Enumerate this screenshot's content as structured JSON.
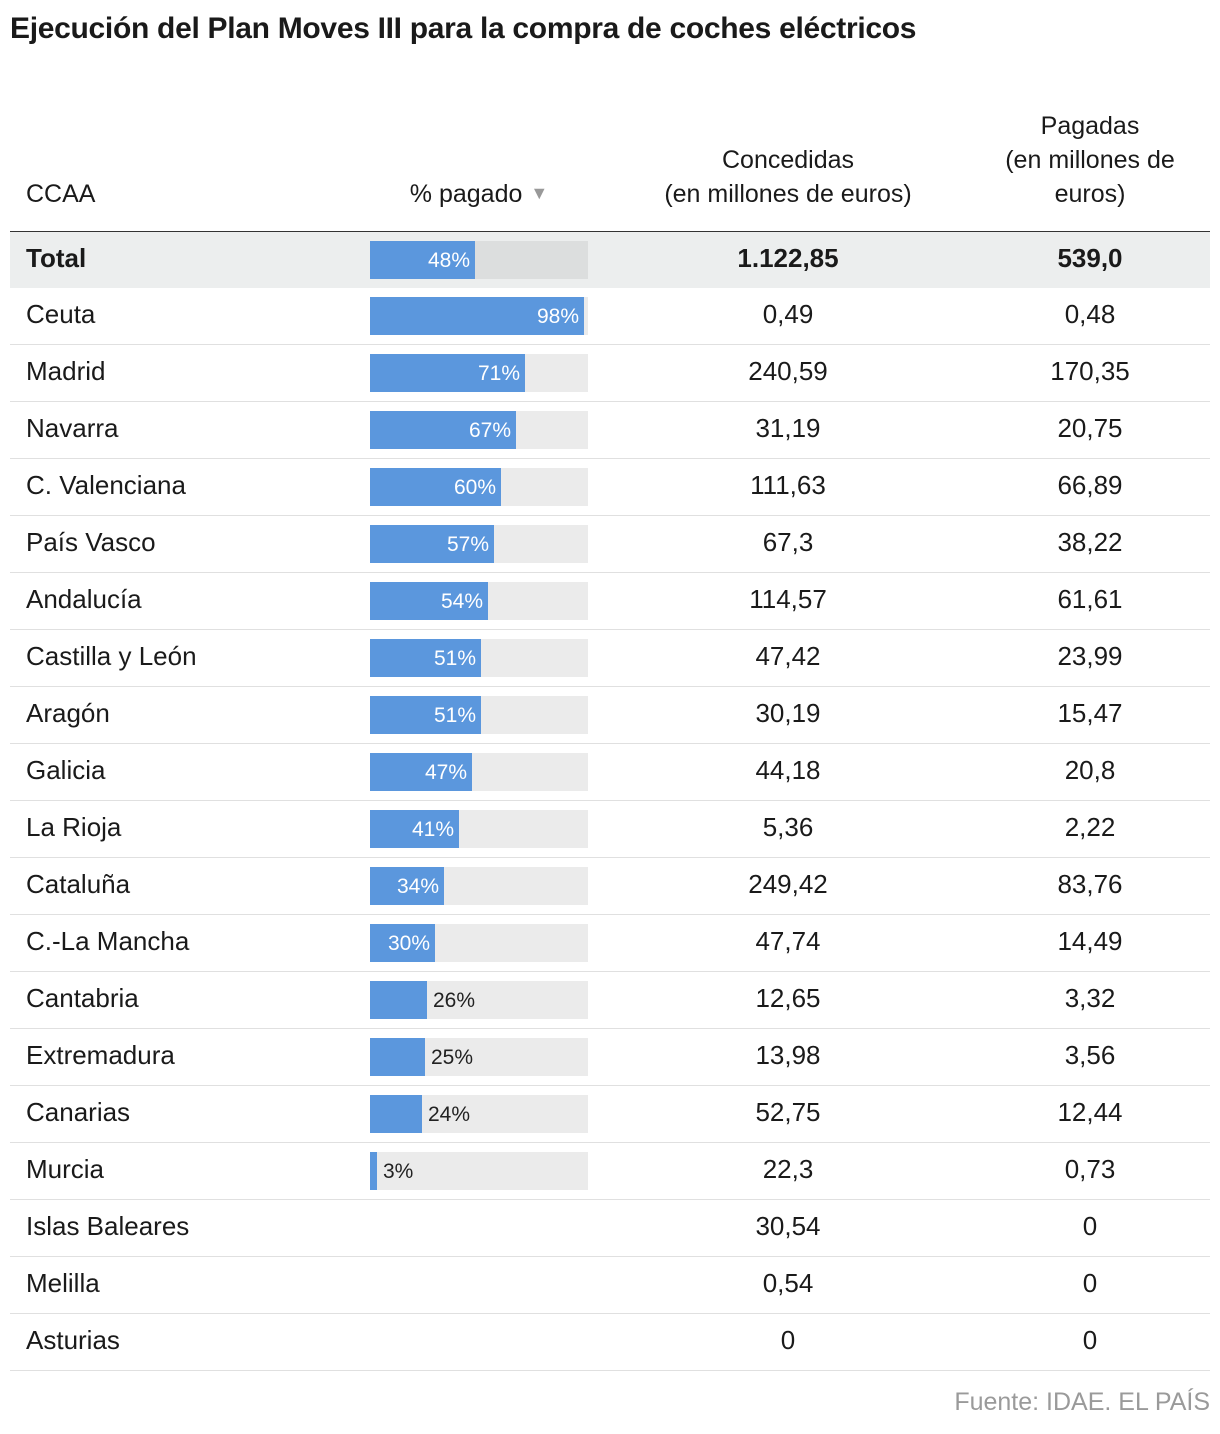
{
  "title": "Ejecución del Plan Moves III para la compra de coches eléctricos",
  "headers": {
    "ccaa": "CCAA",
    "pct": "% pagado",
    "pct_sort_icon": "sort-down-triangle",
    "concedidas_l1": "Concedidas",
    "concedidas_l2": "(en millones de euros)",
    "pagadas_l1": "Pagadas",
    "pagadas_l2": "(en millones de",
    "pagadas_l3": "euros)"
  },
  "colors": {
    "bar": "#5b97dd",
    "track": "#ebebeb",
    "total_bg": "#eceeee"
  },
  "source": "Fuente: IDAE. EL PAÍS",
  "chart_data": {
    "type": "table",
    "title": "Ejecución del Plan Moves III para la compra de coches eléctricos",
    "columns": [
      "CCAA",
      "% pagado",
      "Concedidas (en millones de euros)",
      "Pagadas (en millones de euros)"
    ],
    "pct_range": [
      0,
      100
    ],
    "rows": [
      {
        "name": "Total",
        "pct": 48,
        "pct_label": "48%",
        "concedidas": "1.122,85",
        "pagadas": "539,0",
        "total": true
      },
      {
        "name": "Ceuta",
        "pct": 98,
        "pct_label": "98%",
        "concedidas": "0,49",
        "pagadas": "0,48"
      },
      {
        "name": "Madrid",
        "pct": 71,
        "pct_label": "71%",
        "concedidas": "240,59",
        "pagadas": "170,35"
      },
      {
        "name": "Navarra",
        "pct": 67,
        "pct_label": "67%",
        "concedidas": "31,19",
        "pagadas": "20,75"
      },
      {
        "name": "C. Valenciana",
        "pct": 60,
        "pct_label": "60%",
        "concedidas": "111,63",
        "pagadas": "66,89"
      },
      {
        "name": "País Vasco",
        "pct": 57,
        "pct_label": "57%",
        "concedidas": "67,3",
        "pagadas": "38,22"
      },
      {
        "name": "Andalucía",
        "pct": 54,
        "pct_label": "54%",
        "concedidas": "114,57",
        "pagadas": "61,61"
      },
      {
        "name": "Castilla y León",
        "pct": 51,
        "pct_label": "51%",
        "concedidas": "47,42",
        "pagadas": "23,99"
      },
      {
        "name": "Aragón",
        "pct": 51,
        "pct_label": "51%",
        "concedidas": "30,19",
        "pagadas": "15,47"
      },
      {
        "name": "Galicia",
        "pct": 47,
        "pct_label": "47%",
        "concedidas": "44,18",
        "pagadas": "20,8"
      },
      {
        "name": "La Rioja",
        "pct": 41,
        "pct_label": "41%",
        "concedidas": "5,36",
        "pagadas": "2,22"
      },
      {
        "name": "Cataluña",
        "pct": 34,
        "pct_label": "34%",
        "concedidas": "249,42",
        "pagadas": "83,76"
      },
      {
        "name": "C.-La Mancha",
        "pct": 30,
        "pct_label": "30%",
        "concedidas": "47,74",
        "pagadas": "14,49"
      },
      {
        "name": "Cantabria",
        "pct": 26,
        "pct_label": "26%",
        "concedidas": "12,65",
        "pagadas": "3,32"
      },
      {
        "name": "Extremadura",
        "pct": 25,
        "pct_label": "25%",
        "concedidas": "13,98",
        "pagadas": "3,56"
      },
      {
        "name": "Canarias",
        "pct": 24,
        "pct_label": "24%",
        "concedidas": "52,75",
        "pagadas": "12,44"
      },
      {
        "name": "Murcia",
        "pct": 3,
        "pct_label": "3%",
        "concedidas": "22,3",
        "pagadas": "0,73"
      },
      {
        "name": "Islas Baleares",
        "pct": null,
        "pct_label": "",
        "concedidas": "30,54",
        "pagadas": "0"
      },
      {
        "name": "Melilla",
        "pct": null,
        "pct_label": "",
        "concedidas": "0,54",
        "pagadas": "0"
      },
      {
        "name": "Asturias",
        "pct": null,
        "pct_label": "",
        "concedidas": "0",
        "pagadas": "0"
      }
    ]
  }
}
